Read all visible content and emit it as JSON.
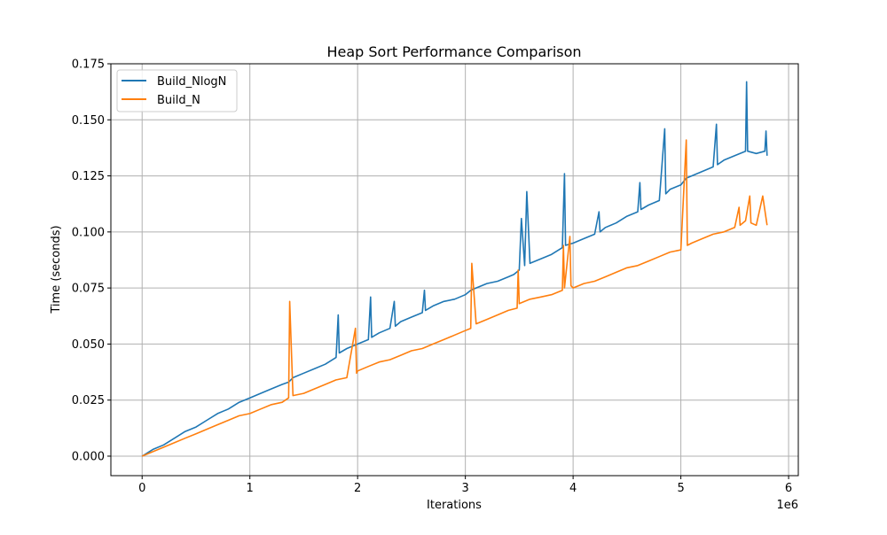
{
  "chart_data": {
    "type": "line",
    "title": "Heap Sort Performance Comparison",
    "xlabel": "Iterations",
    "ylabel": "Time (seconds)",
    "x_offset_label": "1e6",
    "xlim": [
      -0.29,
      6.09
    ],
    "ylim": [
      -0.0087,
      0.175
    ],
    "x_scale_factor": 1000000,
    "xticks": [
      0,
      1,
      2,
      3,
      4,
      5,
      6
    ],
    "xtick_labels": [
      "0",
      "1",
      "2",
      "3",
      "4",
      "5",
      "6"
    ],
    "yticks": [
      0,
      0.025,
      0.05,
      0.075,
      0.1,
      0.125,
      0.15,
      0.175
    ],
    "ytick_labels": [
      "0.000",
      "0.025",
      "0.050",
      "0.075",
      "0.100",
      "0.125",
      "0.150",
      "0.175"
    ],
    "grid": true,
    "legend_position": "top-left",
    "series": [
      {
        "name": "Build_NlogN",
        "color": "#1f77b4",
        "x": [
          0,
          0.1,
          0.2,
          0.3,
          0.4,
          0.5,
          0.6,
          0.7,
          0.8,
          0.9,
          1.0,
          1.1,
          1.2,
          1.3,
          1.36,
          1.4,
          1.5,
          1.6,
          1.7,
          1.8,
          1.82,
          1.83,
          1.9,
          2.0,
          2.1,
          2.12,
          2.13,
          2.2,
          2.3,
          2.34,
          2.35,
          2.4,
          2.5,
          2.6,
          2.62,
          2.63,
          2.7,
          2.8,
          2.9,
          3.0,
          3.05,
          3.1,
          3.2,
          3.3,
          3.4,
          3.45,
          3.5,
          3.52,
          3.55,
          3.57,
          3.6,
          3.7,
          3.8,
          3.9,
          3.92,
          3.93,
          4.0,
          4.1,
          4.2,
          4.24,
          4.25,
          4.3,
          4.4,
          4.5,
          4.6,
          4.62,
          4.63,
          4.7,
          4.8,
          4.85,
          4.86,
          4.9,
          5.0,
          5.05,
          5.1,
          5.2,
          5.3,
          5.33,
          5.34,
          5.4,
          5.5,
          5.6,
          5.61,
          5.62,
          5.7,
          5.78,
          5.79,
          5.8
        ],
        "values": [
          0.0,
          0.003,
          0.005,
          0.008,
          0.011,
          0.013,
          0.016,
          0.019,
          0.021,
          0.024,
          0.026,
          0.028,
          0.03,
          0.032,
          0.033,
          0.035,
          0.037,
          0.039,
          0.041,
          0.044,
          0.063,
          0.046,
          0.048,
          0.05,
          0.052,
          0.071,
          0.053,
          0.055,
          0.057,
          0.069,
          0.058,
          0.06,
          0.062,
          0.064,
          0.074,
          0.065,
          0.067,
          0.069,
          0.07,
          0.072,
          0.074,
          0.075,
          0.077,
          0.078,
          0.08,
          0.081,
          0.083,
          0.106,
          0.085,
          0.118,
          0.086,
          0.088,
          0.09,
          0.093,
          0.126,
          0.094,
          0.095,
          0.097,
          0.099,
          0.109,
          0.1,
          0.102,
          0.104,
          0.107,
          0.109,
          0.122,
          0.11,
          0.112,
          0.114,
          0.146,
          0.117,
          0.119,
          0.121,
          0.124,
          0.125,
          0.127,
          0.129,
          0.148,
          0.13,
          0.132,
          0.134,
          0.136,
          0.167,
          0.136,
          0.135,
          0.136,
          0.145,
          0.134
        ]
      },
      {
        "name": "Build_N",
        "color": "#ff7f0e",
        "x": [
          0,
          0.1,
          0.2,
          0.3,
          0.4,
          0.5,
          0.6,
          0.7,
          0.8,
          0.9,
          1.0,
          1.1,
          1.2,
          1.3,
          1.36,
          1.37,
          1.4,
          1.5,
          1.6,
          1.7,
          1.8,
          1.9,
          1.98,
          1.99,
          2.0,
          2.1,
          2.2,
          2.3,
          2.4,
          2.5,
          2.6,
          2.7,
          2.8,
          2.9,
          3.0,
          3.05,
          3.06,
          3.1,
          3.2,
          3.3,
          3.4,
          3.48,
          3.49,
          3.5,
          3.6,
          3.7,
          3.8,
          3.9,
          3.91,
          3.92,
          3.97,
          3.98,
          4.0,
          4.1,
          4.2,
          4.3,
          4.4,
          4.5,
          4.6,
          4.7,
          4.8,
          4.9,
          5.0,
          5.05,
          5.06,
          5.1,
          5.2,
          5.3,
          5.4,
          5.5,
          5.54,
          5.55,
          5.6,
          5.64,
          5.65,
          5.7,
          5.76,
          5.8
        ],
        "values": [
          0.0,
          0.002,
          0.004,
          0.006,
          0.008,
          0.01,
          0.012,
          0.014,
          0.016,
          0.018,
          0.019,
          0.021,
          0.023,
          0.024,
          0.026,
          0.069,
          0.027,
          0.028,
          0.03,
          0.032,
          0.034,
          0.035,
          0.057,
          0.037,
          0.038,
          0.04,
          0.042,
          0.043,
          0.045,
          0.047,
          0.048,
          0.05,
          0.052,
          0.054,
          0.056,
          0.057,
          0.086,
          0.059,
          0.061,
          0.063,
          0.065,
          0.066,
          0.083,
          0.068,
          0.07,
          0.071,
          0.072,
          0.074,
          0.094,
          0.075,
          0.098,
          0.076,
          0.075,
          0.077,
          0.078,
          0.08,
          0.082,
          0.084,
          0.085,
          0.087,
          0.089,
          0.091,
          0.092,
          0.141,
          0.094,
          0.095,
          0.097,
          0.099,
          0.1,
          0.102,
          0.111,
          0.103,
          0.105,
          0.116,
          0.104,
          0.103,
          0.116,
          0.103
        ]
      }
    ]
  }
}
